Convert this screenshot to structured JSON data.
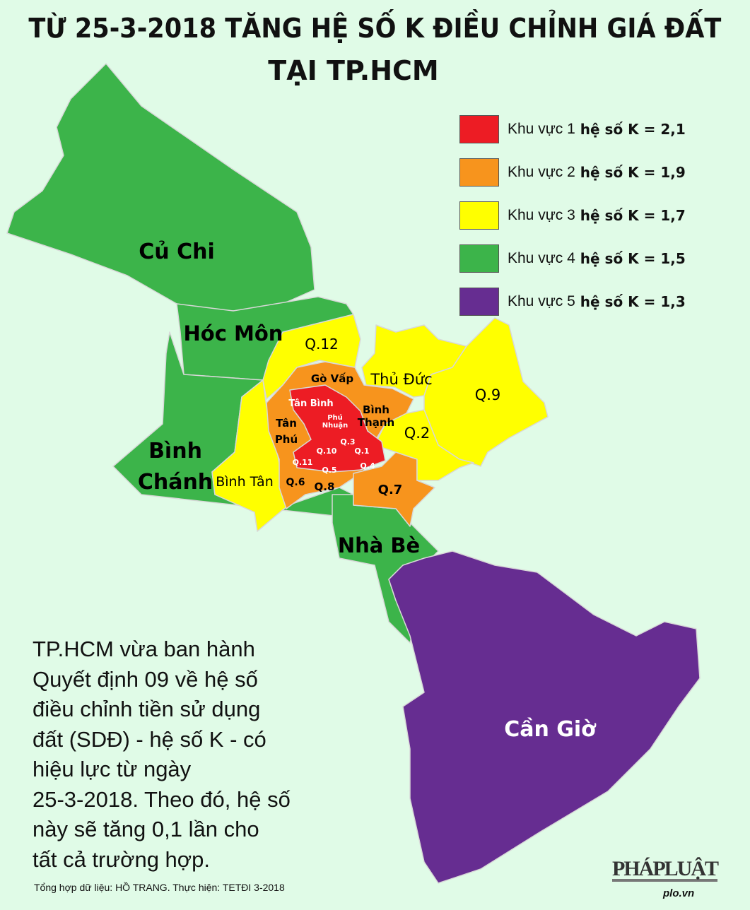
{
  "title": {
    "line1": "TỪ 25-3-2018 TĂNG HỆ SỐ K ĐIỀU CHỈNH GIÁ ĐẤT",
    "line2": "TẠI TP.HCM"
  },
  "colors": {
    "zone1": "#ed1c24",
    "zone2": "#f7941d",
    "zone3": "#ffff00",
    "zone4": "#3cb44a",
    "zone5": "#662d91",
    "background": "#e0fbe7"
  },
  "legend": [
    {
      "area": "Khu vực 1",
      "coef": "hệ số K = 2,1",
      "color": "#ed1c24"
    },
    {
      "area": "Khu vực 2",
      "coef": "hệ số K = 1,9",
      "color": "#f7941d"
    },
    {
      "area": "Khu vực 3",
      "coef": "hệ số K = 1,7",
      "color": "#ffff00"
    },
    {
      "area": "Khu vực 4",
      "coef": "hệ số K = 1,5",
      "color": "#3cb44a"
    },
    {
      "area": "Khu vực 5",
      "coef": "hệ số K = 1,3",
      "color": "#662d91"
    }
  ],
  "districts": {
    "cu_chi": "Củ Chi",
    "hoc_mon": "Hóc Môn",
    "binh_chanh_1": "Bình",
    "binh_chanh_2": "Chánh",
    "nha_be": "Nhà Bè",
    "can_gio": "Cần Giờ",
    "q12": "Q.12",
    "go_vap": "Gò Vấp",
    "thu_duc": "Thủ Đức",
    "q9": "Q.9",
    "tan_binh": "Tân Bình",
    "phu_nhuan_1": "Phú",
    "phu_nhuan_2": "Nhuận",
    "binh_thanh_1": "Bình",
    "binh_thanh_2": "Thạnh",
    "tan_phu_1": "Tân",
    "tan_phu_2": "Phú",
    "q2": "Q.2",
    "q3": "Q.3",
    "q10": "Q.10",
    "q1": "Q.1",
    "q11": "Q.11",
    "q5": "Q.5",
    "q4": "Q.4",
    "binh_tan": "Bình Tân",
    "q6": "Q.6",
    "q8": "Q.8",
    "q7": "Q.7"
  },
  "body_text": [
    "TP.HCM vừa ban hành",
    "Quyết định 09 về hệ số",
    "điều chỉnh tiền sử dụng",
    "đất (SDĐ) - hệ số K - có",
    "hiệu lực từ ngày",
    "25-3-2018. Theo đó, hệ số",
    "này sẽ tăng 0,1 lần cho",
    "tất cả trường hợp."
  ],
  "credit": "Tổng hợp dữ liệu: HỒ TRANG. Thực hiện: TETĐI  3-2018",
  "logo": "PHÁPLUẬT",
  "site": "plo.vn"
}
